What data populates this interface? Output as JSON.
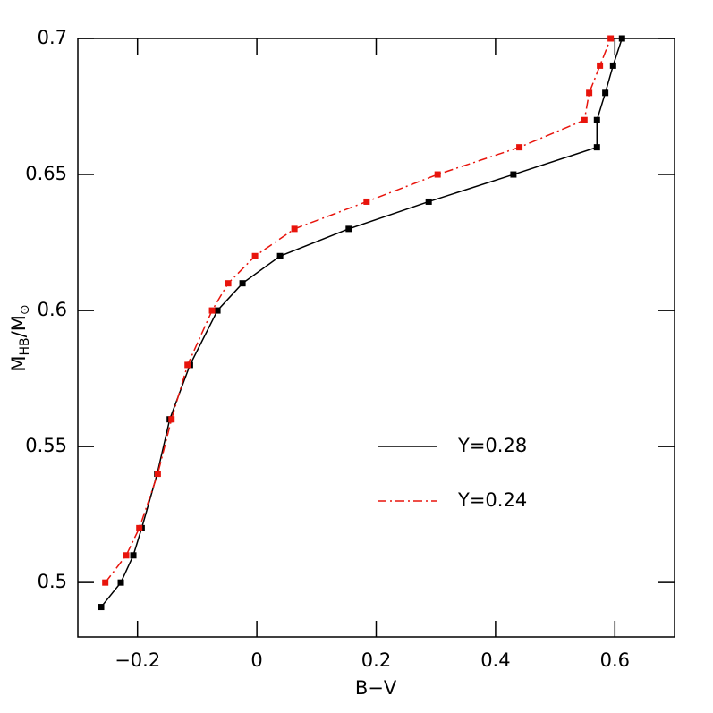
{
  "chart_data": {
    "type": "line",
    "xlabel": "B−V",
    "ylabel": [
      "M",
      "HB",
      "/M",
      "⊙"
    ],
    "xlim": [
      -0.3,
      0.7
    ],
    "ylim": [
      0.48,
      0.7
    ],
    "xticks": [
      {
        "value": -0.2,
        "label": "−0.2"
      },
      0,
      0.2,
      0.4,
      0.6
    ],
    "yticks": [
      0.5,
      0.55,
      0.6,
      0.65,
      0.7
    ],
    "legend": "lower right",
    "series": [
      {
        "name": "Y=0.28",
        "color": "#000000",
        "dash": "solid",
        "x": [
          -0.261,
          -0.228,
          -0.207,
          -0.193,
          -0.167,
          -0.146,
          -0.112,
          -0.066,
          -0.024,
          0.039,
          0.154,
          0.288,
          0.43,
          0.57,
          0.57,
          0.584,
          0.597,
          0.612
        ],
        "values": [
          0.491,
          0.5,
          0.51,
          0.52,
          0.54,
          0.56,
          0.58,
          0.6,
          0.61,
          0.62,
          0.63,
          0.64,
          0.65,
          0.66,
          0.67,
          0.68,
          0.69,
          0.7
        ]
      },
      {
        "name": "Y=0.24",
        "color": "#e8140c",
        "dash": "dashdot",
        "x": [
          -0.254,
          -0.219,
          -0.197,
          -0.166,
          -0.143,
          -0.116,
          -0.075,
          -0.048,
          -0.003,
          0.063,
          0.184,
          0.303,
          0.44,
          0.549,
          0.557,
          0.575,
          0.593
        ],
        "values": [
          0.5,
          0.51,
          0.52,
          0.54,
          0.56,
          0.58,
          0.6,
          0.61,
          0.62,
          0.63,
          0.64,
          0.65,
          0.66,
          0.67,
          0.68,
          0.69,
          0.7
        ]
      }
    ]
  }
}
